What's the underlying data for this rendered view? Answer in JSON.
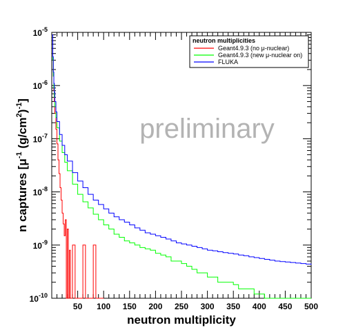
{
  "chart_data": {
    "type": "line",
    "xlabel": "neutron multiplicity",
    "ylabel_main": "n captures [μ",
    "ylabel_exp1": "-1",
    "ylabel_mid": " (g/cm",
    "ylabel_exp2": "2",
    "ylabel_exp3": ")",
    "ylabel_exp4": "-1",
    "ylabel_end": "]",
    "xlim": [
      0,
      500
    ],
    "ylim": [
      1e-10,
      1e-05
    ],
    "yscale": "log",
    "x_ticks": [
      50,
      100,
      150,
      200,
      250,
      300,
      350,
      400,
      450,
      500
    ],
    "y_ticks": [
      {
        "base": "10",
        "exp": "-10"
      },
      {
        "base": "10",
        "exp": "-9"
      },
      {
        "base": "10",
        "exp": "-8"
      },
      {
        "base": "10",
        "exp": "-7"
      },
      {
        "base": "10",
        "exp": "-6"
      },
      {
        "base": "10",
        "exp": "-5"
      }
    ],
    "legend": {
      "title": "neutron multiplicities",
      "position": "top-right",
      "entries": [
        {
          "label": "Geant4.9.3 (no μ-nuclear)",
          "color": "#ff0000"
        },
        {
          "label": "Geant4.9.3 (new μ-nuclear on)",
          "color": "#00ff00"
        },
        {
          "label": "FLUKA",
          "color": "#0000ff"
        }
      ]
    },
    "watermark": "preliminary",
    "series": [
      {
        "name": "Geant4.9.3 (no μ-nuclear)",
        "color": "#ff0000",
        "x": [
          1,
          2,
          3,
          4,
          5,
          6,
          8,
          10,
          12,
          14,
          16,
          18,
          20,
          22,
          24,
          26,
          28,
          30,
          32,
          34,
          36,
          38,
          40,
          45,
          50,
          55,
          60,
          65,
          70,
          75,
          80,
          85,
          90
        ],
        "y": [
          8e-06,
          3e-06,
          1.5e-06,
          8e-07,
          5e-07,
          3e-07,
          1.5e-07,
          8e-08,
          4e-08,
          2.2e-08,
          1.2e-08,
          7e-09,
          4e-09,
          2.5e-09,
          1.5e-09,
          3e-09,
          1e-10,
          2e-09,
          1e-10,
          8e-10,
          1e-10,
          1e-10,
          1e-09,
          1e-10,
          1e-10,
          1e-10,
          1e-09,
          1e-10,
          1e-10,
          1e-10,
          1e-09,
          1e-10,
          1e-10
        ]
      },
      {
        "name": "Geant4.9.3 (new μ-nuclear on)",
        "color": "#00ff00",
        "x": [
          1,
          2,
          3,
          4,
          5,
          6,
          8,
          10,
          15,
          20,
          25,
          30,
          40,
          50,
          60,
          70,
          80,
          90,
          100,
          110,
          120,
          130,
          140,
          150,
          160,
          170,
          180,
          190,
          200,
          210,
          220,
          230,
          240,
          250,
          260,
          270,
          280,
          290,
          300,
          310,
          320,
          330,
          340,
          350,
          360,
          370,
          380,
          390,
          400,
          410,
          420,
          430,
          440,
          450,
          460,
          470,
          480,
          490,
          500
        ],
        "y": [
          8e-06,
          3e-06,
          1.5e-06,
          9e-07,
          6e-07,
          4e-07,
          2.5e-07,
          1.6e-07,
          9e-08,
          5.5e-08,
          3.6e-08,
          2.5e-08,
          1.4e-08,
          9e-09,
          6.5e-09,
          5e-09,
          3.8e-09,
          3e-09,
          2.4e-09,
          2e-09,
          1.6e-09,
          1.4e-09,
          1.2e-09,
          1.1e-09,
          1e-09,
          9e-10,
          8.5e-10,
          8e-10,
          7e-10,
          6.5e-10,
          6e-10,
          5e-10,
          5e-10,
          4.5e-10,
          4e-10,
          3.5e-10,
          3e-10,
          3e-10,
          2.5e-10,
          2.5e-10,
          2e-10,
          2e-10,
          2e-10,
          1.8e-10,
          1.5e-10,
          1.5e-10,
          1.5e-10,
          1.2e-10,
          1.2e-10,
          1e-10,
          1e-10,
          1e-10,
          1e-10,
          1e-10,
          1e-10,
          1e-10,
          1e-10,
          1e-10,
          1e-10
        ]
      },
      {
        "name": "FLUKA",
        "color": "#0000ff",
        "x": [
          1,
          2,
          3,
          4,
          5,
          6,
          8,
          10,
          15,
          20,
          25,
          30,
          40,
          50,
          60,
          70,
          80,
          90,
          100,
          110,
          120,
          130,
          140,
          150,
          160,
          170,
          180,
          190,
          200,
          210,
          220,
          230,
          240,
          250,
          260,
          270,
          280,
          290,
          300,
          310,
          320,
          330,
          340,
          350,
          360,
          370,
          380,
          390,
          400,
          410,
          420,
          430,
          440,
          450,
          460,
          470,
          480,
          490,
          500
        ],
        "y": [
          9e-06,
          3.5e-06,
          1.8e-06,
          1.1e-06,
          7.5e-07,
          5e-07,
          3.2e-07,
          2.1e-07,
          1.2e-07,
          7.5e-08,
          5e-08,
          3.8e-08,
          2.3e-08,
          1.6e-08,
          1.2e-08,
          9e-09,
          7e-09,
          5.8e-09,
          4.8e-09,
          4e-09,
          3.4e-09,
          3e-09,
          2.7e-09,
          2.4e-09,
          2.1e-09,
          1.9e-09,
          1.7e-09,
          1.6e-09,
          1.5e-09,
          1.4e-09,
          1.3e-09,
          1.2e-09,
          1.1e-09,
          1.05e-09,
          1e-09,
          9.5e-10,
          9e-10,
          8.5e-10,
          8e-10,
          7.8e-10,
          7.5e-10,
          7.2e-10,
          7e-10,
          6.8e-10,
          6.5e-10,
          6.3e-10,
          6e-10,
          5.8e-10,
          5.6e-10,
          5.4e-10,
          5.2e-10,
          5e-10,
          4.9e-10,
          4.8e-10,
          4.7e-10,
          4.6e-10,
          4.5e-10,
          4.4e-10,
          4.3e-10
        ]
      }
    ]
  }
}
